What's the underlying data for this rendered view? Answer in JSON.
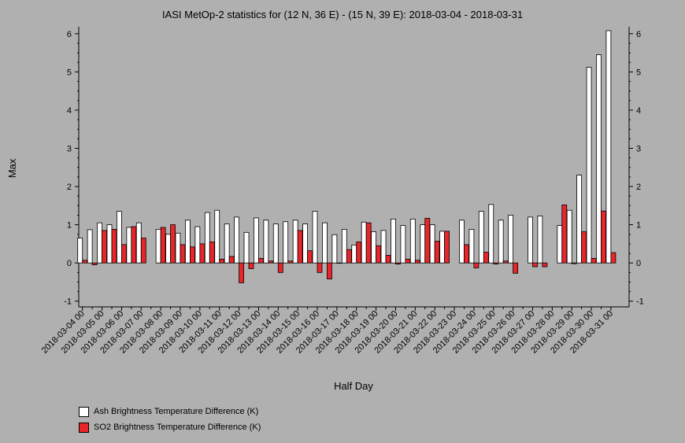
{
  "chart_data": {
    "type": "bar",
    "title": "IASI MetOp-2 statistics for (12 N, 36 E) - (15 N, 39 E): 2018-03-04 - 2018-03-31",
    "xlabel": "Half Day",
    "ylabel": "Max",
    "ylim": [
      -1.15,
      6.1
    ],
    "yticks": [
      -1,
      0,
      1,
      2,
      3,
      4,
      5,
      6
    ],
    "grid": false,
    "legend_position": "bottom-left",
    "x_tick_labels": [
      "2018-03-04 00",
      "2018-03-05 00",
      "2018-03-06 00",
      "2018-03-07 00",
      "2018-03-08 00",
      "2018-03-09 00",
      "2018-03-10 00",
      "2018-03-11 00",
      "2018-03-12 00",
      "2018-03-13 00",
      "2018-03-14 00",
      "2018-03-15 00",
      "2018-03-16 00",
      "2018-03-17 00",
      "2018-03-18 00",
      "2018-03-19 00",
      "2018-03-20 00",
      "2018-03-21 00",
      "2018-03-22 00",
      "2018-03-23 00",
      "2018-03-24 00",
      "2018-03-25 00",
      "2018-03-26 00",
      "2018-03-27 00",
      "2018-03-28 00",
      "2018-03-29 00",
      "2018-03-30 00",
      "2018-03-31 00"
    ],
    "categories": [
      "2018-03-04 00",
      "2018-03-04 12",
      "2018-03-05 00",
      "2018-03-05 12",
      "2018-03-06 00",
      "2018-03-06 12",
      "2018-03-07 00",
      "2018-03-07 12",
      "2018-03-08 00",
      "2018-03-08 12",
      "2018-03-09 00",
      "2018-03-09 12",
      "2018-03-10 00",
      "2018-03-10 12",
      "2018-03-11 00",
      "2018-03-11 12",
      "2018-03-12 00",
      "2018-03-12 12",
      "2018-03-13 00",
      "2018-03-13 12",
      "2018-03-14 00",
      "2018-03-14 12",
      "2018-03-15 00",
      "2018-03-15 12",
      "2018-03-16 00",
      "2018-03-16 12",
      "2018-03-17 00",
      "2018-03-17 12",
      "2018-03-18 00",
      "2018-03-18 12",
      "2018-03-19 00",
      "2018-03-19 12",
      "2018-03-20 00",
      "2018-03-20 12",
      "2018-03-21 00",
      "2018-03-21 12",
      "2018-03-22 00",
      "2018-03-22 12",
      "2018-03-23 00",
      "2018-03-23 12",
      "2018-03-24 00",
      "2018-03-24 12",
      "2018-03-25 00",
      "2018-03-25 12",
      "2018-03-26 00",
      "2018-03-26 12",
      "2018-03-27 00",
      "2018-03-27 12",
      "2018-03-28 00",
      "2018-03-28 12",
      "2018-03-29 00",
      "2018-03-29 12",
      "2018-03-30 00",
      "2018-03-30 12",
      "2018-03-31 00"
    ],
    "series": [
      {
        "name": "Ash Brightness Temperature Difference (K)",
        "color": "#ffffff",
        "values": [
          0.65,
          0.87,
          1.05,
          1.0,
          1.35,
          0.93,
          1.05,
          null,
          0.88,
          0.75,
          0.78,
          1.12,
          0.95,
          1.32,
          1.38,
          1.02,
          1.2,
          0.8,
          1.18,
          1.12,
          1.02,
          1.08,
          1.12,
          1.02,
          1.35,
          1.05,
          0.74,
          0.88,
          0.47,
          1.07,
          0.82,
          0.85,
          1.15,
          0.98,
          1.15,
          1.0,
          1.0,
          0.83,
          null,
          1.12,
          0.88,
          1.35,
          1.53,
          1.12,
          1.25,
          null,
          1.2,
          1.23,
          null,
          0.98,
          1.38,
          2.3,
          5.12,
          5.45,
          6.08
        ]
      },
      {
        "name": "SO2 Brightness Temperature Difference (K)",
        "color": "#e8262a",
        "values": [
          0.07,
          -0.05,
          0.85,
          0.88,
          0.48,
          0.95,
          0.65,
          null,
          0.93,
          1.0,
          0.48,
          0.42,
          0.5,
          0.55,
          0.1,
          0.17,
          -0.52,
          -0.15,
          0.12,
          0.05,
          -0.25,
          0.05,
          0.85,
          0.32,
          -0.25,
          -0.42,
          0.0,
          0.35,
          0.55,
          1.05,
          0.45,
          0.2,
          -0.03,
          0.1,
          0.07,
          1.17,
          0.57,
          0.83,
          null,
          0.48,
          -0.13,
          0.28,
          -0.03,
          0.05,
          -0.27,
          null,
          -0.1,
          -0.1,
          null,
          1.52,
          -0.02,
          0.82,
          0.12,
          1.36,
          0.27
        ]
      }
    ]
  }
}
